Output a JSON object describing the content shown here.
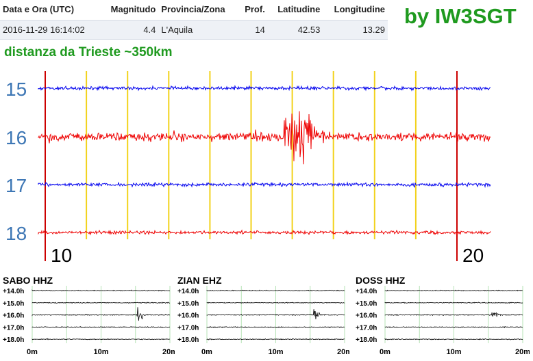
{
  "event": {
    "headers": [
      "Data e Ora (UTC)",
      "Magnitudo",
      "Provincia/Zona",
      "Prof.",
      "Latitudine",
      "Longitudine"
    ],
    "row": [
      "2016-11-29 16:14:02",
      "4.4",
      "L'Aquila",
      "14",
      "42.53",
      "13.29"
    ]
  },
  "credit": "by IW3SGT",
  "distance_note": "distanza da Trieste ~350km",
  "chart_data": [
    {
      "type": "line",
      "traces": [
        {
          "label": "15",
          "color": "#0000ee",
          "peak_minute": null,
          "peak_amplitude": 0.1
        },
        {
          "label": "16",
          "color": "#ee0000",
          "peak_minute": 16.2,
          "peak_amplitude": 1.0
        },
        {
          "label": "17",
          "color": "#0000ee",
          "peak_minute": null,
          "peak_amplitude": 0.1
        },
        {
          "label": "18",
          "color": "#ee0000",
          "peak_minute": null,
          "peak_amplitude": 0.08
        }
      ],
      "x_labels": [
        {
          "text": "10",
          "minute": 10
        },
        {
          "text": "20",
          "minute": 20
        }
      ],
      "xlim": [
        10,
        20
      ],
      "gridline_color": "#f2d21b",
      "marker_color": "#cc0000"
    },
    {
      "type": "line",
      "title": "SABO HHZ",
      "rows": [
        "+14.0h",
        "+15.0h",
        "+16.0h",
        "+17.0h",
        "+18.0h"
      ],
      "x_ticks": [
        "0m",
        "10m",
        "20m"
      ],
      "xlim": [
        0,
        20
      ],
      "event_row": 2,
      "event_minute": 15.5
    },
    {
      "type": "line",
      "title": "ZIAN EHZ",
      "rows": [
        "+14.0h",
        "+15.0h",
        "+16.0h",
        "+17.0h",
        "+18.0h"
      ],
      "x_ticks": [
        "0m",
        "10m",
        "20m"
      ],
      "xlim": [
        0,
        20
      ],
      "event_row": 2,
      "event_minute": 15.8
    },
    {
      "type": "line",
      "title": "DOSS HHZ",
      "rows": [
        "+14.0h",
        "+15.0h",
        "+16.0h",
        "+17.0h",
        "+18.0h"
      ],
      "x_ticks": [
        "0m",
        "10m",
        "20m"
      ],
      "xlim": [
        0,
        20
      ],
      "event_row": 2,
      "event_minute": 15.8
    }
  ]
}
